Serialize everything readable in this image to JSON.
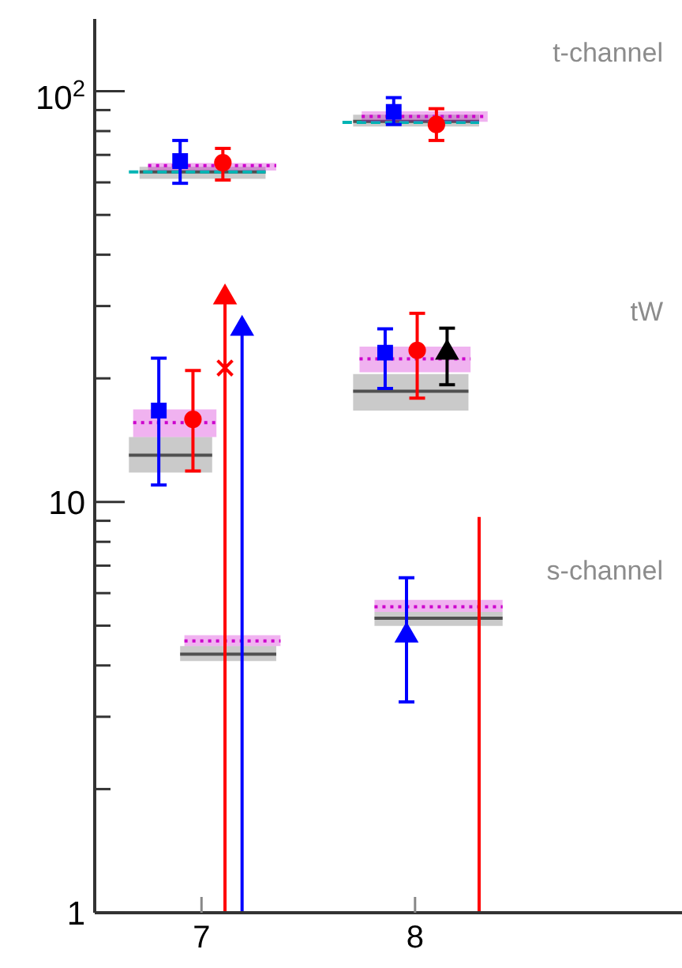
{
  "chart_data": {
    "type": "scatter",
    "xlim": [
      6.5,
      9.25
    ],
    "xticks": [
      7,
      8
    ],
    "ylim": [
      1,
      150
    ],
    "log": "y",
    "yticks": [
      1,
      {
        "value": 2,
        "label": null
      },
      {
        "value": 3,
        "label": null
      },
      {
        "value": 4,
        "label": null
      },
      {
        "value": 5,
        "label": null
      },
      {
        "value": 6,
        "label": null
      },
      {
        "value": 7,
        "label": null
      },
      {
        "value": 8,
        "label": null
      },
      {
        "value": 9,
        "label": null
      },
      10,
      {
        "value": 20,
        "label": null
      },
      {
        "value": 30,
        "label": null
      },
      {
        "value": 40,
        "label": null
      },
      {
        "value": 50,
        "label": null
      },
      {
        "value": 60,
        "label": null
      },
      {
        "value": 70,
        "label": null
      },
      {
        "value": 80,
        "label": null
      },
      {
        "value": 90,
        "label": null
      },
      {
        "value": 100,
        "label": "10$^{2}$"
      }
    ],
    "annotations": [
      "t-channel",
      "tW",
      "s-channel"
    ],
    "series": [
      {
        "type": "line",
        "color": "#505050",
        "line_style": "solid",
        "x": [
          6.71,
          7.3
        ],
        "values": [
          63.6,
          63.6
        ],
        "lower": [
          61.2,
          61.2
        ],
        "upper": [
          65.5,
          65.5
        ]
      },
      {
        "type": "line",
        "color": "#505050",
        "line_style": "solid",
        "x": [
          7.71,
          8.3
        ],
        "values": [
          84.5,
          84.5
        ],
        "lower": [
          82.1,
          82.1
        ],
        "upper": [
          87.7,
          87.7
        ]
      },
      {
        "type": "line",
        "color": "#505050",
        "line_style": "solid",
        "x": [
          6.66,
          7.05
        ],
        "values": [
          13,
          13
        ],
        "lower": [
          11.8,
          11.8
        ],
        "upper": [
          14.4,
          14.4
        ]
      },
      {
        "type": "line",
        "color": "#505050",
        "line_style": "solid",
        "x": [
          7.71,
          8.25
        ],
        "values": [
          18.6,
          18.6
        ],
        "lower": [
          16.7,
          16.7
        ],
        "upper": [
          20.5,
          20.5
        ]
      },
      {
        "type": "line",
        "color": "#505050",
        "line_style": "solid",
        "x": [
          6.9,
          7.35
        ],
        "values": [
          4.26,
          4.26
        ],
        "lower": [
          4.1,
          4.1
        ],
        "upper": [
          4.46,
          4.46
        ]
      },
      {
        "type": "line",
        "color": "#505050",
        "line_style": "solid",
        "x": [
          7.81,
          8.41
        ],
        "values": [
          5.21,
          5.21
        ],
        "lower": [
          4.99,
          4.99
        ],
        "upper": [
          5.4,
          5.4
        ]
      },
      {
        "type": "line",
        "color": "#00b4b4",
        "line_style": "dashed",
        "x": [
          6.66,
          7.3
        ],
        "values": [
          63.6,
          63.6
        ]
      },
      {
        "type": "line",
        "color": "#00b4b4",
        "line_style": "dashed",
        "x": [
          7.66,
          8.3
        ],
        "values": [
          84.0,
          84.0
        ]
      },
      {
        "type": "line",
        "color": "#cc00cc",
        "line_style": "dotted",
        "x": [
          6.75,
          7.35
        ],
        "values": [
          65.9,
          65.9
        ],
        "lower": [
          64.1,
          64.1
        ],
        "upper": [
          66.9,
          66.9
        ]
      },
      {
        "type": "line",
        "color": "#cc00cc",
        "line_style": "dotted",
        "x": [
          7.75,
          8.34
        ],
        "values": [
          86.8,
          86.8
        ],
        "lower": [
          84.3,
          84.3
        ],
        "upper": [
          89.4,
          89.4
        ]
      },
      {
        "type": "line",
        "color": "#cc00cc",
        "line_style": "dotted",
        "x": [
          6.68,
          7.07
        ],
        "values": [
          15.6,
          15.6
        ],
        "lower": [
          14.4,
          14.4
        ],
        "upper": [
          16.8,
          16.8
        ]
      },
      {
        "type": "line",
        "color": "#cc00cc",
        "line_style": "dotted",
        "x": [
          7.74,
          8.26
        ],
        "values": [
          22.3,
          22.3
        ],
        "lower": [
          20.7,
          20.7
        ],
        "upper": [
          23.9,
          23.9
        ]
      },
      {
        "type": "line",
        "color": "#cc00cc",
        "line_style": "dotted",
        "x": [
          6.92,
          7.37
        ],
        "values": [
          4.59,
          4.59
        ],
        "lower": [
          4.46,
          4.46
        ],
        "upper": [
          4.74,
          4.74
        ]
      },
      {
        "type": "line",
        "color": "#cc00cc",
        "line_style": "dotted",
        "x": [
          7.81,
          8.41
        ],
        "values": [
          5.56,
          5.56
        ],
        "lower": [
          5.4,
          5.4
        ],
        "upper": [
          5.78,
          5.78
        ]
      },
      {
        "color": "#0000ff",
        "marker": "square",
        "x": [
          6.9,
          7.9,
          6.8,
          7.86
        ],
        "values": [
          67.6,
          89.1,
          16.7,
          23.1
        ],
        "errors": [
          [
            59.7,
            75.9
          ],
          [
            83.0,
            96.5
          ],
          [
            11.0,
            22.4
          ],
          [
            18.9,
            26.4
          ]
        ]
      },
      {
        "color": "#ff0000",
        "marker": "circle",
        "x": [
          7.1,
          8.1,
          6.96,
          8.01
        ],
        "values": [
          67.0,
          83.0,
          15.9,
          23.4
        ],
        "errors": [
          [
            60.8,
            72.6
          ],
          [
            75.9,
            90.7
          ],
          [
            11.9,
            20.9
          ],
          [
            17.9,
            28.8
          ]
        ]
      },
      {
        "color": "#000000",
        "marker": "triangle",
        "x": [
          8.15
        ],
        "values": [
          23.1
        ],
        "errors": [
          [
            19.3,
            26.5
          ]
        ]
      },
      {
        "color": "#0000ff",
        "marker": "triangle",
        "x": [
          7.96,
          7.19
        ],
        "values": [
          4.73,
          26.4
        ],
        "errors": [
          [
            3.26,
            6.54
          ],
          [
            1,
            26.4
          ]
        ]
      },
      {
        "color": "#ff0000",
        "marker": "triangle",
        "x": [
          7.11
        ],
        "values": [
          31.5
        ],
        "errors": [
          [
            1,
            31.5
          ]
        ]
      },
      {
        "type": "line",
        "color": "#ff0000",
        "line_style": "solid",
        "x": [
          8.3,
          8.3
        ],
        "values": [
          1,
          9.2
        ]
      },
      {
        "color": "#ff0000",
        "marker": "cross",
        "x": [
          7.11
        ],
        "values": [
          21.2
        ]
      }
    ]
  }
}
